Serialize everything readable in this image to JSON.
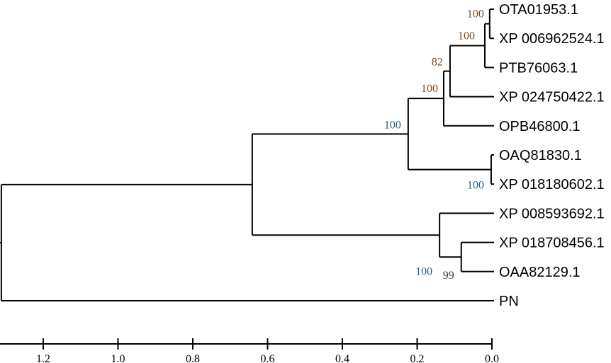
{
  "colors": {
    "branch": "#000000",
    "support_high": "#7a4a1e",
    "support_blue": "#1f5f8b",
    "support_dark": "#3a3a3a"
  },
  "tree": {
    "id": "root",
    "height": 1.312,
    "children": [
      {
        "id": "I",
        "height": 0.641,
        "children": [
          {
            "id": "F",
            "height": 0.224,
            "support": "100",
            "children": [
              {
                "id": "D",
                "height": 0.129,
                "support": "100",
                "children": [
                  {
                    "id": "C",
                    "height": 0.112,
                    "support": "82",
                    "children": [
                      {
                        "id": "B",
                        "height": 0.019,
                        "support": "100",
                        "children": [
                          {
                            "id": "A",
                            "height": 0.006,
                            "support": "100",
                            "children": [
                              {
                                "label": "OTA01953.1"
                              },
                              {
                                "label": "XP 006962524.1"
                              }
                            ]
                          },
                          {
                            "label": "PTB76063.1"
                          }
                        ]
                      },
                      {
                        "label": "XP 024750422.1"
                      }
                    ]
                  },
                  {
                    "label": "OPB46800.1"
                  }
                ]
              },
              {
                "id": "E",
                "height": 0.002,
                "support": "100",
                "children": [
                  {
                    "label": "OAQ81830.1"
                  },
                  {
                    "label": "XP 018180602.1"
                  }
                ]
              }
            ]
          },
          {
            "id": "H",
            "height": 0.14,
            "support": "100",
            "children": [
              {
                "label": "XP 008593692.1"
              },
              {
                "id": "G",
                "height": 0.082,
                "support": "99",
                "children": [
                  {
                    "label": "XP 018708456.1"
                  },
                  {
                    "label": "OAA82129.1"
                  }
                ]
              }
            ]
          }
        ]
      },
      {
        "label": "PN"
      }
    ]
  },
  "scale": {
    "ticks": [
      "1.2",
      "1.0",
      "0.8",
      "0.6",
      "0.4",
      "0.2",
      "0.0"
    ],
    "reversed": true
  }
}
